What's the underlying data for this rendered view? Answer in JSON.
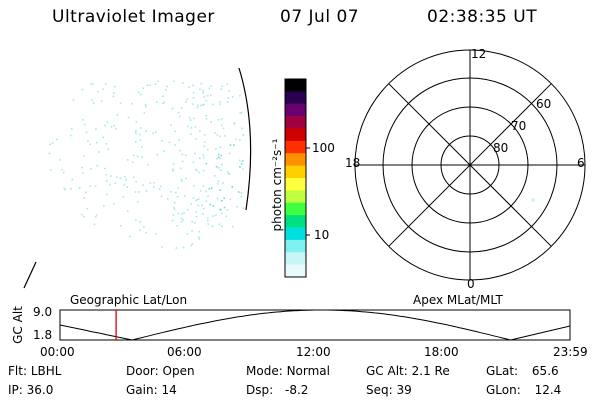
{
  "header": {
    "title": "Ultraviolet Imager",
    "date": "07 Jul 07",
    "time": "02:38:35 UT"
  },
  "colorbar": {
    "unit_label": "photon cm⁻²s⁻¹",
    "ticks": [
      "100",
      "10"
    ],
    "colors": [
      "#000000",
      "#2a0050",
      "#6a0070",
      "#a00040",
      "#d00000",
      "#ff3000",
      "#ff9000",
      "#ffd000",
      "#ffff40",
      "#c0ff40",
      "#40ff40",
      "#00e080",
      "#00e0e0",
      "#80f0f0",
      "#c8f5f5",
      "#e8fafa"
    ]
  },
  "polar_plot": {
    "mlt_labels": [
      "12",
      "18",
      "6",
      "0"
    ],
    "lat_labels": [
      "60",
      "70",
      "80"
    ],
    "ring_latitudes": [
      50,
      60,
      70,
      80
    ],
    "grid_color": "#000000"
  },
  "timeline": {
    "ylabel": "GC Alt",
    "ymax": "9.0",
    "ymin": "1.8",
    "left_label": "Geographic Lat/Lon",
    "right_label": "Apex MLat/MLT",
    "time_ticks": [
      "00:00",
      "06:00",
      "12:00",
      "18:00",
      "23:59"
    ],
    "current_time_marker_color": "#e00000",
    "current_time_hours": 2.64
  },
  "info": {
    "row1": [
      {
        "label": "Flt:",
        "value": "LBHL"
      },
      {
        "label": "Door:",
        "value": "Open"
      },
      {
        "label": "Mode:",
        "value": "Normal"
      },
      {
        "label": "GC Alt:",
        "value": "2.1 Re"
      },
      {
        "label": "GLat:",
        "value": "65.6"
      }
    ],
    "row2": [
      {
        "label": "IP:",
        "value": "36.0"
      },
      {
        "label": "Gain:",
        "value": "14"
      },
      {
        "label": "Dsp:",
        "value": "-8.2"
      },
      {
        "label": "Seq:",
        "value": "39"
      },
      {
        "label": "GLon:",
        "value": "12.4"
      }
    ]
  },
  "image_colors": {
    "speckle": "#a8e8ec",
    "speckle_bright": "#70d8e0"
  }
}
